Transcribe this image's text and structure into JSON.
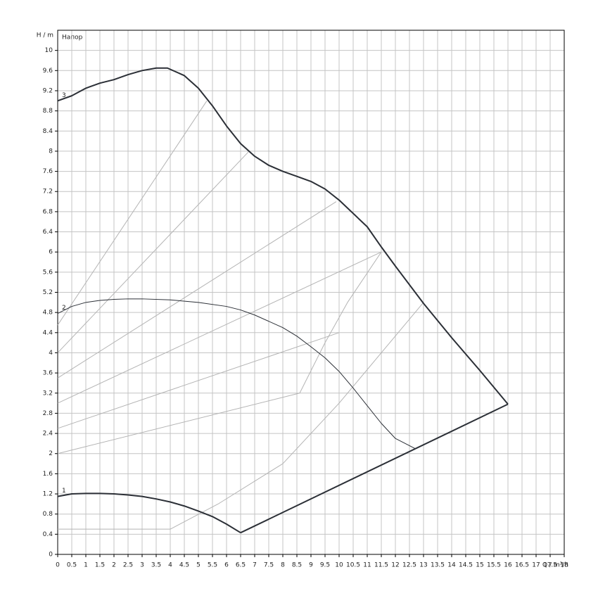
{
  "chart_data": {
    "type": "line",
    "annotation": "Напор",
    "y_axis_label": "H / m",
    "x_axis_label": "Q / m³/h",
    "xlim": [
      0,
      18
    ],
    "ylim": [
      0,
      10.4
    ],
    "xticks": [
      0,
      0.5,
      1,
      1.5,
      2,
      2.5,
      3,
      3.5,
      4,
      4.5,
      5,
      5.5,
      6,
      6.5,
      7,
      7.5,
      8,
      8.5,
      9,
      9.5,
      10,
      10.5,
      11,
      11.5,
      12,
      12.5,
      13,
      13.5,
      14,
      14.5,
      15,
      15.5,
      16,
      16.5,
      17,
      17.5,
      18
    ],
    "yticks": [
      0,
      0.4,
      0.8,
      1.2,
      1.6,
      2,
      2.4,
      2.8,
      3.2,
      3.6,
      4,
      4.4,
      4.8,
      5.2,
      5.6,
      6,
      6.4,
      6.8,
      7.2,
      7.6,
      8,
      8.4,
      8.8,
      9.2,
      9.6,
      10
    ],
    "grid": true,
    "series": [
      {
        "name": "3",
        "color": "#2b2f36",
        "line_width": 2,
        "x": [
          0,
          0.5,
          1,
          1.5,
          2,
          2.5,
          3,
          3.5,
          3.9,
          4.5,
          5,
          5.5,
          6,
          6.5,
          7,
          7.5,
          8,
          8.5,
          9,
          9.5,
          10,
          11,
          11.5,
          12,
          13,
          14,
          15,
          16
        ],
        "values": [
          9.0,
          9.1,
          9.25,
          9.35,
          9.42,
          9.52,
          9.6,
          9.65,
          9.65,
          9.5,
          9.25,
          8.9,
          8.5,
          8.15,
          7.9,
          7.72,
          7.6,
          7.5,
          7.4,
          7.25,
          7.03,
          6.5,
          6.1,
          5.72,
          4.98,
          4.3,
          3.65,
          2.98
        ]
      },
      {
        "name": "2",
        "color": "#2b2f36",
        "line_width": 1,
        "x": [
          0,
          0.5,
          1,
          1.5,
          2,
          2.5,
          3,
          4,
          5,
          6,
          6.5,
          7,
          8,
          8.5,
          9,
          9.5,
          10,
          10.5,
          11,
          11.5,
          12,
          12.7
        ],
        "values": [
          4.78,
          4.92,
          5.0,
          5.04,
          5.06,
          5.07,
          5.07,
          5.05,
          5.0,
          4.92,
          4.85,
          4.75,
          4.5,
          4.33,
          4.12,
          3.9,
          3.63,
          3.3,
          2.95,
          2.6,
          2.3,
          2.1
        ]
      },
      {
        "name": "1",
        "color": "#2b2f36",
        "line_width": 2,
        "x": [
          0,
          0.5,
          1,
          1.5,
          2,
          2.5,
          3,
          3.5,
          4,
          4.5,
          5,
          5.5,
          6,
          6.5
        ],
        "values": [
          1.15,
          1.2,
          1.21,
          1.21,
          1.2,
          1.18,
          1.15,
          1.1,
          1.04,
          0.96,
          0.86,
          0.75,
          0.6,
          0.43
        ]
      },
      {
        "color": "#2b2f36",
        "line_width": 2,
        "x": [
          6.5,
          16
        ],
        "values": [
          0.43,
          2.98
        ]
      },
      {
        "color": "#b4b4b4",
        "line_width": 1,
        "x": [
          0,
          5.3
        ],
        "values": [
          4.55,
          9.0
        ]
      },
      {
        "color": "#b4b4b4",
        "line_width": 1,
        "x": [
          0,
          6.8
        ],
        "values": [
          4.0,
          8.0
        ]
      },
      {
        "color": "#b4b4b4",
        "line_width": 1,
        "x": [
          0,
          9.9
        ],
        "values": [
          3.5,
          7.0
        ]
      },
      {
        "color": "#b4b4b4",
        "line_width": 1,
        "x": [
          0,
          11.5
        ],
        "values": [
          3.0,
          6.0
        ]
      },
      {
        "color": "#b4b4b4",
        "line_width": 1,
        "x": [
          0,
          10
        ],
        "values": [
          2.5,
          4.4
        ]
      },
      {
        "color": "#b4b4b4",
        "line_width": 1,
        "x": [
          0,
          8.6,
          9.5,
          10.3,
          11.5
        ],
        "values": [
          2.0,
          3.2,
          4.2,
          5.0,
          6.0
        ]
      },
      {
        "color": "#b4b4b4",
        "line_width": 1,
        "x": [
          0,
          4,
          5.7,
          8,
          10,
          11.5,
          13
        ],
        "values": [
          0.5,
          0.5,
          1.0,
          1.8,
          3.0,
          4.0,
          5.0
        ]
      }
    ]
  }
}
